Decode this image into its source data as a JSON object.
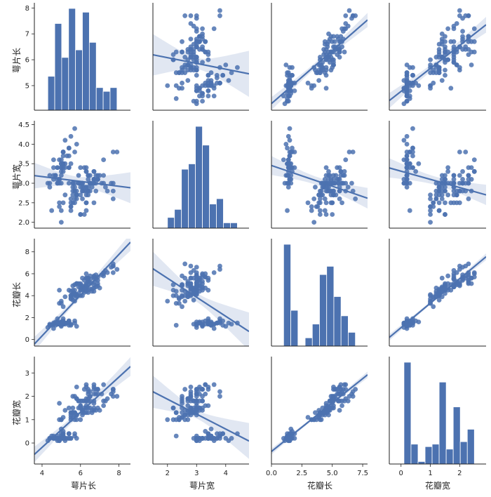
{
  "chart_data": {
    "type": "scatter",
    "kind": "pairplot",
    "variables": [
      "萼片长",
      "萼片宽",
      "花瓣长",
      "花瓣宽"
    ],
    "diagonal": "histogram",
    "off_diagonal": "regression scatter with confidence band",
    "color": "#4c72b0",
    "grid": false,
    "x_ticks": [
      {
        "values": [
          4,
          6,
          8
        ],
        "labels": [
          "4",
          "6",
          "8"
        ]
      },
      {
        "values": [
          2,
          3,
          4
        ],
        "labels": [
          "2",
          "3",
          "4"
        ]
      },
      {
        "values": [
          0,
          2.5,
          5,
          7.5
        ],
        "labels": [
          "0.0",
          "2.5",
          "5.0",
          "7.5"
        ]
      },
      {
        "values": [
          0,
          1,
          2
        ],
        "labels": [
          "0",
          "1",
          "2"
        ]
      }
    ],
    "y_ticks": [
      {
        "values": [
          5,
          6,
          7,
          8
        ],
        "labels": [
          "5",
          "6",
          "7",
          "8"
        ]
      },
      {
        "values": [
          2.0,
          2.5,
          3.0,
          3.5,
          4.0,
          4.5
        ],
        "labels": [
          "2.0",
          "2.5",
          "3.0",
          "3.5",
          "4.0",
          "4.5"
        ]
      },
      {
        "values": [
          0,
          2,
          4,
          6,
          8
        ],
        "labels": [
          "0",
          "2",
          "4",
          "6",
          "8"
        ]
      },
      {
        "values": [
          0,
          1,
          2,
          3
        ],
        "labels": [
          "0",
          "1",
          "2",
          "3"
        ]
      }
    ],
    "x_ranges": [
      [
        3.6,
        8.6
      ],
      [
        1.5,
        4.8
      ],
      [
        0,
        7.9
      ],
      [
        -0.4,
        2.9
      ]
    ],
    "y_ranges": [
      [
        4.05,
        8.2
      ],
      [
        1.85,
        4.6
      ],
      [
        -0.6,
        9.2
      ],
      [
        -0.9,
        3.7
      ]
    ],
    "histograms": [
      {
        "variable": "萼片长",
        "bins": [
          4.3,
          4.66,
          5.02,
          5.38,
          5.74,
          6.1,
          6.46,
          6.82,
          7.18,
          7.54,
          7.9
        ],
        "counts": [
          9,
          23,
          14,
          27,
          16,
          26,
          18,
          6,
          5,
          6
        ]
      },
      {
        "variable": "萼片宽",
        "bins": [
          2.0,
          2.24,
          2.48,
          2.72,
          2.96,
          3.2,
          3.44,
          3.68,
          3.92,
          4.16,
          4.4
        ],
        "counts": [
          4,
          7,
          22,
          24,
          38,
          31,
          9,
          11,
          2,
          2
        ]
      },
      {
        "variable": "花瓣长",
        "bins": [
          1.0,
          1.59,
          2.18,
          2.77,
          3.36,
          3.95,
          4.54,
          5.13,
          5.72,
          6.31,
          6.9
        ],
        "counts": [
          37,
          13,
          0,
          3,
          8,
          26,
          29,
          18,
          11,
          5
        ]
      },
      {
        "variable": "花瓣宽",
        "bins": [
          0.1,
          0.34,
          0.58,
          0.82,
          1.06,
          1.3,
          1.54,
          1.78,
          2.02,
          2.26,
          2.5
        ],
        "counts": [
          41,
          8,
          1,
          7,
          8,
          33,
          6,
          23,
          9,
          14
        ]
      }
    ],
    "regressions": [
      {
        "y": "萼片长",
        "x": "萼片宽",
        "slope": -0.223,
        "intercept": 6.526
      },
      {
        "y": "萼片长",
        "x": "花瓣长",
        "slope": 0.409,
        "intercept": 4.306
      },
      {
        "y": "萼片长",
        "x": "花瓣宽",
        "slope": 0.888,
        "intercept": 4.777
      },
      {
        "y": "萼片宽",
        "x": "萼片长",
        "slope": -0.062,
        "intercept": 3.418
      },
      {
        "y": "萼片宽",
        "x": "花瓣长",
        "slope": -0.106,
        "intercept": 3.454
      },
      {
        "y": "萼片宽",
        "x": "花瓣宽",
        "slope": -0.209,
        "intercept": 3.308
      },
      {
        "y": "花瓣长",
        "x": "萼片长",
        "slope": 1.858,
        "intercept": -7.101
      },
      {
        "y": "花瓣长",
        "x": "萼片宽",
        "slope": -1.735,
        "intercept": 9.063
      },
      {
        "y": "花瓣长",
        "x": "花瓣宽",
        "slope": 2.23,
        "intercept": 1.084
      },
      {
        "y": "花瓣宽",
        "x": "萼片长",
        "slope": 0.753,
        "intercept": -3.2
      },
      {
        "y": "花瓣宽",
        "x": "萼片宽",
        "slope": -0.64,
        "intercept": 3.157
      },
      {
        "y": "花瓣宽",
        "x": "花瓣长",
        "slope": 0.416,
        "intercept": -0.363
      }
    ],
    "data": [
      [
        5.1,
        3.5,
        1.4,
        0.2
      ],
      [
        4.9,
        3.0,
        1.4,
        0.2
      ],
      [
        4.7,
        3.2,
        1.3,
        0.2
      ],
      [
        4.6,
        3.1,
        1.5,
        0.2
      ],
      [
        5.0,
        3.6,
        1.4,
        0.2
      ],
      [
        5.4,
        3.9,
        1.7,
        0.4
      ],
      [
        4.6,
        3.4,
        1.4,
        0.3
      ],
      [
        5.0,
        3.4,
        1.5,
        0.2
      ],
      [
        4.4,
        2.9,
        1.4,
        0.2
      ],
      [
        4.9,
        3.1,
        1.5,
        0.1
      ],
      [
        5.4,
        3.7,
        1.5,
        0.2
      ],
      [
        4.8,
        3.4,
        1.6,
        0.2
      ],
      [
        4.8,
        3.0,
        1.4,
        0.1
      ],
      [
        4.3,
        3.0,
        1.1,
        0.1
      ],
      [
        5.8,
        4.0,
        1.2,
        0.2
      ],
      [
        5.7,
        4.4,
        1.5,
        0.4
      ],
      [
        5.4,
        3.9,
        1.3,
        0.4
      ],
      [
        5.1,
        3.5,
        1.4,
        0.3
      ],
      [
        5.7,
        3.8,
        1.7,
        0.3
      ],
      [
        5.1,
        3.8,
        1.5,
        0.3
      ],
      [
        5.4,
        3.4,
        1.7,
        0.2
      ],
      [
        5.1,
        3.7,
        1.5,
        0.4
      ],
      [
        4.6,
        3.6,
        1.0,
        0.2
      ],
      [
        5.1,
        3.3,
        1.7,
        0.5
      ],
      [
        4.8,
        3.4,
        1.9,
        0.2
      ],
      [
        5.0,
        3.0,
        1.6,
        0.2
      ],
      [
        5.0,
        3.4,
        1.6,
        0.4
      ],
      [
        5.2,
        3.5,
        1.5,
        0.2
      ],
      [
        5.2,
        3.4,
        1.4,
        0.2
      ],
      [
        4.7,
        3.2,
        1.6,
        0.2
      ],
      [
        4.8,
        3.1,
        1.6,
        0.2
      ],
      [
        5.4,
        3.4,
        1.5,
        0.4
      ],
      [
        5.2,
        4.1,
        1.5,
        0.1
      ],
      [
        5.5,
        4.2,
        1.4,
        0.2
      ],
      [
        4.9,
        3.1,
        1.5,
        0.2
      ],
      [
        5.0,
        3.2,
        1.2,
        0.2
      ],
      [
        5.5,
        3.5,
        1.3,
        0.2
      ],
      [
        4.9,
        3.6,
        1.4,
        0.1
      ],
      [
        4.4,
        3.0,
        1.3,
        0.2
      ],
      [
        5.1,
        3.4,
        1.5,
        0.2
      ],
      [
        5.0,
        3.5,
        1.3,
        0.3
      ],
      [
        4.5,
        2.3,
        1.3,
        0.3
      ],
      [
        4.4,
        3.2,
        1.3,
        0.2
      ],
      [
        5.0,
        3.5,
        1.6,
        0.6
      ],
      [
        5.1,
        3.8,
        1.9,
        0.4
      ],
      [
        4.8,
        3.0,
        1.4,
        0.3
      ],
      [
        5.1,
        3.8,
        1.6,
        0.2
      ],
      [
        4.6,
        3.2,
        1.4,
        0.2
      ],
      [
        5.3,
        3.7,
        1.5,
        0.2
      ],
      [
        5.0,
        3.3,
        1.4,
        0.2
      ],
      [
        7.0,
        3.2,
        4.7,
        1.4
      ],
      [
        6.4,
        3.2,
        4.5,
        1.5
      ],
      [
        6.9,
        3.1,
        4.9,
        1.5
      ],
      [
        5.5,
        2.3,
        4.0,
        1.3
      ],
      [
        6.5,
        2.8,
        4.6,
        1.5
      ],
      [
        5.7,
        2.8,
        4.5,
        1.3
      ],
      [
        6.3,
        3.3,
        4.7,
        1.6
      ],
      [
        4.9,
        2.4,
        3.3,
        1.0
      ],
      [
        6.6,
        2.9,
        4.6,
        1.3
      ],
      [
        5.2,
        2.7,
        3.9,
        1.4
      ],
      [
        5.0,
        2.0,
        3.5,
        1.0
      ],
      [
        5.9,
        3.0,
        4.2,
        1.5
      ],
      [
        6.0,
        2.2,
        4.0,
        1.0
      ],
      [
        6.1,
        2.9,
        4.7,
        1.4
      ],
      [
        5.6,
        2.9,
        3.6,
        1.3
      ],
      [
        6.7,
        3.1,
        4.4,
        1.4
      ],
      [
        5.6,
        3.0,
        4.5,
        1.5
      ],
      [
        5.8,
        2.7,
        4.1,
        1.0
      ],
      [
        6.2,
        2.2,
        4.5,
        1.5
      ],
      [
        5.6,
        2.5,
        3.9,
        1.1
      ],
      [
        5.9,
        3.2,
        4.8,
        1.8
      ],
      [
        6.1,
        2.8,
        4.0,
        1.3
      ],
      [
        6.3,
        2.5,
        4.9,
        1.5
      ],
      [
        6.1,
        2.8,
        4.7,
        1.2
      ],
      [
        6.4,
        2.9,
        4.3,
        1.3
      ],
      [
        6.6,
        3.0,
        4.4,
        1.4
      ],
      [
        6.8,
        2.8,
        4.8,
        1.4
      ],
      [
        6.7,
        3.0,
        5.0,
        1.7
      ],
      [
        6.0,
        2.9,
        4.5,
        1.5
      ],
      [
        5.7,
        2.6,
        3.5,
        1.0
      ],
      [
        5.5,
        2.4,
        3.8,
        1.1
      ],
      [
        5.5,
        2.4,
        3.7,
        1.0
      ],
      [
        5.8,
        2.7,
        3.9,
        1.2
      ],
      [
        6.0,
        2.7,
        5.1,
        1.6
      ],
      [
        5.4,
        3.0,
        4.5,
        1.5
      ],
      [
        6.0,
        3.4,
        4.5,
        1.6
      ],
      [
        6.7,
        3.1,
        4.7,
        1.5
      ],
      [
        6.3,
        2.3,
        4.4,
        1.3
      ],
      [
        5.6,
        3.0,
        4.1,
        1.3
      ],
      [
        5.5,
        2.5,
        4.0,
        1.3
      ],
      [
        5.5,
        2.6,
        4.4,
        1.2
      ],
      [
        6.1,
        3.0,
        4.6,
        1.4
      ],
      [
        5.8,
        2.6,
        4.0,
        1.2
      ],
      [
        5.0,
        2.3,
        3.3,
        1.0
      ],
      [
        5.6,
        2.7,
        4.2,
        1.3
      ],
      [
        5.7,
        3.0,
        4.2,
        1.2
      ],
      [
        5.7,
        2.9,
        4.2,
        1.3
      ],
      [
        6.2,
        2.9,
        4.3,
        1.3
      ],
      [
        5.1,
        2.5,
        3.0,
        1.1
      ],
      [
        5.7,
        2.8,
        4.1,
        1.3
      ],
      [
        6.3,
        3.3,
        6.0,
        2.5
      ],
      [
        5.8,
        2.7,
        5.1,
        1.9
      ],
      [
        7.1,
        3.0,
        5.9,
        2.1
      ],
      [
        6.3,
        2.9,
        5.6,
        1.8
      ],
      [
        6.5,
        3.0,
        5.8,
        2.2
      ],
      [
        7.6,
        3.0,
        6.6,
        2.1
      ],
      [
        4.9,
        2.5,
        4.5,
        1.7
      ],
      [
        7.3,
        2.9,
        6.3,
        1.8
      ],
      [
        6.7,
        2.5,
        5.8,
        1.8
      ],
      [
        7.2,
        3.6,
        6.1,
        2.5
      ],
      [
        6.5,
        3.2,
        5.1,
        2.0
      ],
      [
        6.4,
        2.7,
        5.3,
        1.9
      ],
      [
        6.8,
        3.0,
        5.5,
        2.1
      ],
      [
        5.7,
        2.5,
        5.0,
        2.0
      ],
      [
        5.8,
        2.8,
        5.1,
        2.4
      ],
      [
        6.4,
        3.2,
        5.3,
        2.3
      ],
      [
        6.5,
        3.0,
        5.5,
        1.8
      ],
      [
        7.7,
        3.8,
        6.7,
        2.2
      ],
      [
        7.7,
        2.6,
        6.9,
        2.3
      ],
      [
        6.0,
        2.2,
        5.0,
        1.5
      ],
      [
        6.9,
        3.2,
        5.7,
        2.3
      ],
      [
        5.6,
        2.8,
        4.9,
        2.0
      ],
      [
        7.7,
        2.8,
        6.7,
        2.0
      ],
      [
        6.3,
        2.7,
        4.9,
        1.8
      ],
      [
        6.7,
        3.3,
        5.7,
        2.1
      ],
      [
        7.2,
        3.2,
        6.0,
        1.8
      ],
      [
        6.2,
        2.8,
        4.8,
        1.8
      ],
      [
        6.1,
        3.0,
        4.9,
        1.8
      ],
      [
        6.4,
        2.8,
        5.6,
        2.1
      ],
      [
        7.2,
        3.0,
        5.8,
        1.6
      ],
      [
        7.4,
        2.8,
        6.1,
        1.9
      ],
      [
        7.9,
        3.8,
        6.4,
        2.0
      ],
      [
        6.4,
        2.8,
        5.6,
        2.2
      ],
      [
        6.3,
        2.8,
        5.1,
        1.5
      ],
      [
        6.1,
        2.6,
        5.6,
        1.4
      ],
      [
        7.7,
        3.0,
        6.1,
        2.3
      ],
      [
        6.3,
        3.4,
        5.6,
        2.4
      ],
      [
        6.4,
        3.1,
        5.5,
        1.8
      ],
      [
        6.0,
        3.0,
        4.8,
        1.8
      ],
      [
        6.9,
        3.1,
        5.4,
        2.1
      ],
      [
        6.7,
        3.1,
        5.6,
        2.4
      ],
      [
        6.9,
        3.1,
        5.1,
        2.3
      ],
      [
        5.8,
        2.7,
        5.1,
        1.9
      ],
      [
        6.8,
        3.2,
        5.9,
        2.3
      ],
      [
        6.7,
        3.3,
        5.7,
        2.5
      ],
      [
        6.7,
        3.0,
        5.2,
        2.3
      ],
      [
        6.3,
        2.5,
        5.0,
        1.9
      ],
      [
        6.5,
        3.0,
        5.2,
        2.0
      ],
      [
        6.2,
        3.4,
        5.4,
        2.3
      ],
      [
        5.9,
        3.0,
        5.1,
        1.8
      ]
    ]
  }
}
